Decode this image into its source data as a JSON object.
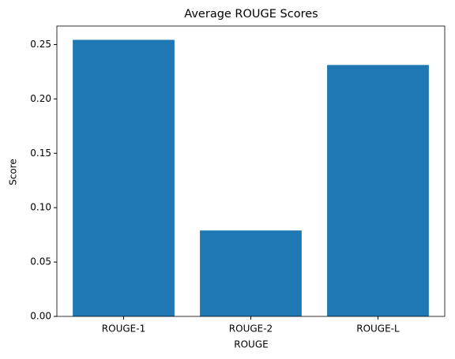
{
  "chart_data": {
    "type": "bar",
    "title": "Average ROUGE Scores",
    "x_label": "ROUGE",
    "y_label": "Score",
    "categories": [
      "ROUGE-1",
      "ROUGE-2",
      "ROUGE-L"
    ],
    "values": [
      0.2543,
      0.079,
      0.2312
    ],
    "color": "#1f77b4",
    "ylim": [
      0,
      0.267
    ],
    "yticks": [
      {
        "value": 0,
        "label": "0.00"
      },
      {
        "value": 0.05,
        "label": "0.05"
      },
      {
        "value": 0.1,
        "label": "0.10"
      },
      {
        "value": 0.15,
        "label": "0.15"
      },
      {
        "value": 0.2,
        "label": "0.20"
      },
      {
        "value": 0.25,
        "label": "0.25"
      }
    ],
    "grid": false
  }
}
